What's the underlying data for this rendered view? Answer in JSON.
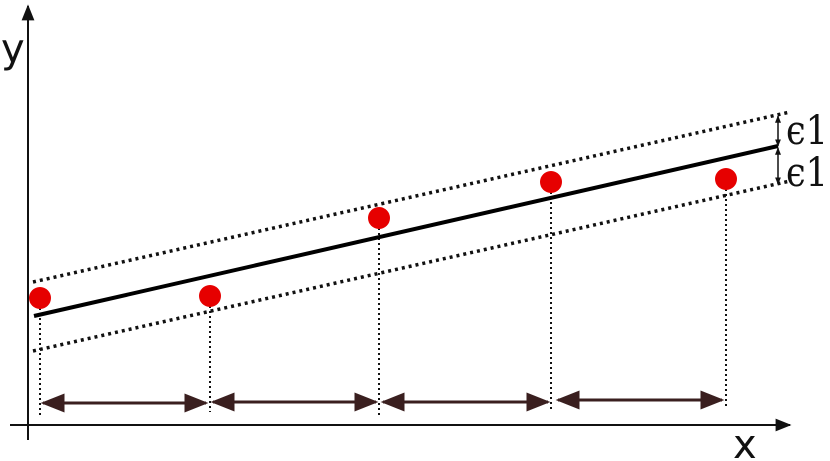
{
  "axes": {
    "x_label": "x",
    "y_label": "y"
  },
  "margin_labels": {
    "upper": "ϵ1",
    "lower": "ϵ1"
  },
  "colors": {
    "points": "#e60000",
    "lines": "#000000",
    "arrows": "#3a1f1f"
  },
  "regression": {
    "point_count": 5,
    "interval_arrow_count": 4
  }
}
